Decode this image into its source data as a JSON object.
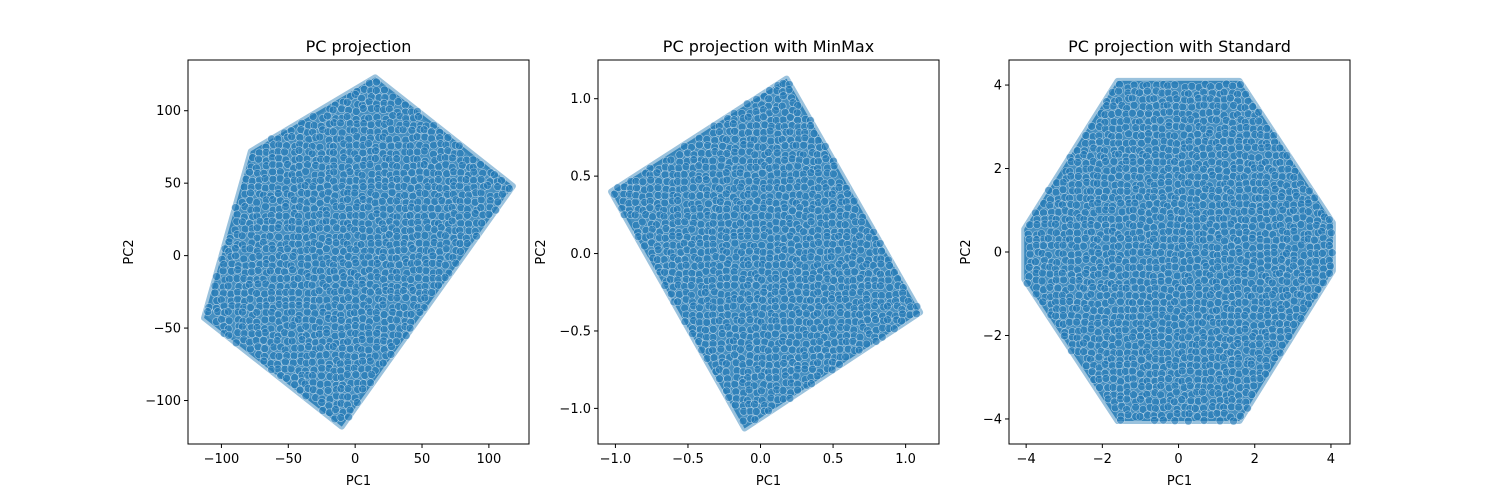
{
  "chart_data": [
    {
      "type": "scatter",
      "title": "PC projection",
      "xlabel": "PC1",
      "ylabel": "PC2",
      "xlim": [
        -125,
        130
      ],
      "ylim": [
        -130,
        135
      ],
      "xticks": [
        -100,
        -50,
        0,
        50,
        100
      ],
      "yticks": [
        -100,
        -50,
        0,
        50,
        100
      ],
      "xtick_labels": [
        "−100",
        "−50",
        "0",
        "50",
        "100"
      ],
      "ytick_labels": [
        "−100",
        "−50",
        "0",
        "50",
        "100"
      ],
      "grid": false,
      "color": "#1f77b4",
      "hull": [
        [
          15,
          123
        ],
        [
          118,
          48
        ],
        [
          -10,
          -118
        ],
        [
          -113,
          -43
        ],
        [
          -78,
          72
        ]
      ]
    },
    {
      "type": "scatter",
      "title": "PC projection with MinMax",
      "xlabel": "PC1",
      "ylabel": "PC2",
      "xlim": [
        -1.12,
        1.23
      ],
      "ylim": [
        -1.23,
        1.25
      ],
      "xticks": [
        -1.0,
        -0.5,
        0.0,
        0.5,
        1.0
      ],
      "yticks": [
        -1.0,
        -0.5,
        0.0,
        0.5,
        1.0
      ],
      "xtick_labels": [
        "−1.0",
        "−0.5",
        "0.0",
        "0.5",
        "1.0"
      ],
      "ytick_labels": [
        "−1.0",
        "−0.5",
        "0.0",
        "0.5",
        "1.0"
      ],
      "grid": false,
      "color": "#1f77b4",
      "hull": [
        [
          0.18,
          1.13
        ],
        [
          1.1,
          -0.38
        ],
        [
          -0.11,
          -1.13
        ],
        [
          -1.03,
          0.4
        ]
      ]
    },
    {
      "type": "scatter",
      "title": "PC projection with Standard",
      "xlabel": "PC1",
      "ylabel": "PC2",
      "xlim": [
        -4.45,
        4.5
      ],
      "ylim": [
        -4.6,
        4.6
      ],
      "xticks": [
        -4,
        -2,
        0,
        2,
        4
      ],
      "yticks": [
        -4,
        -2,
        0,
        2,
        4
      ],
      "xtick_labels": [
        "−4",
        "−2",
        "0",
        "2",
        "4"
      ],
      "ytick_labels": [
        "−4",
        "−2",
        "0",
        "2",
        "4"
      ],
      "grid": false,
      "color": "#1f77b4",
      "hull": [
        [
          -1.6,
          4.1
        ],
        [
          1.6,
          4.1
        ],
        [
          4.05,
          0.7
        ],
        [
          4.05,
          -0.45
        ],
        [
          1.6,
          -4.05
        ],
        [
          -1.6,
          -4.05
        ],
        [
          -4.05,
          -0.65
        ],
        [
          -4.05,
          0.55
        ]
      ]
    }
  ]
}
